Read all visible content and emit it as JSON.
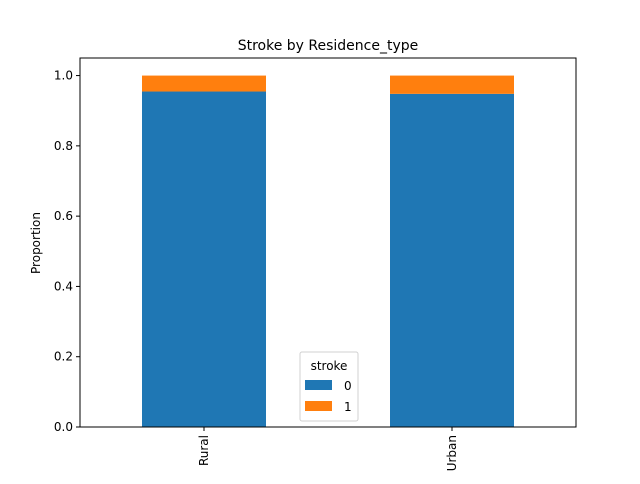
{
  "chart_data": {
    "type": "bar",
    "stacked": true,
    "title": "Stroke by Residence_type",
    "xlabel": "",
    "ylabel": "Proportion",
    "categories": [
      "Rural",
      "Urban"
    ],
    "series": [
      {
        "name": "0",
        "values": [
          0.9546,
          0.948
        ],
        "color": "#1f77b4"
      },
      {
        "name": "1",
        "values": [
          0.0454,
          0.052
        ],
        "color": "#ff7f0e"
      }
    ],
    "ylim": [
      0,
      1.05
    ],
    "yticks": [
      0.0,
      0.2,
      0.4,
      0.6,
      0.8,
      1.0
    ],
    "ytick_labels": [
      "0.0",
      "0.2",
      "0.4",
      "0.6",
      "0.8",
      "1.0"
    ],
    "grid": false,
    "legend": {
      "title": "stroke",
      "placement": "lower-center"
    }
  }
}
